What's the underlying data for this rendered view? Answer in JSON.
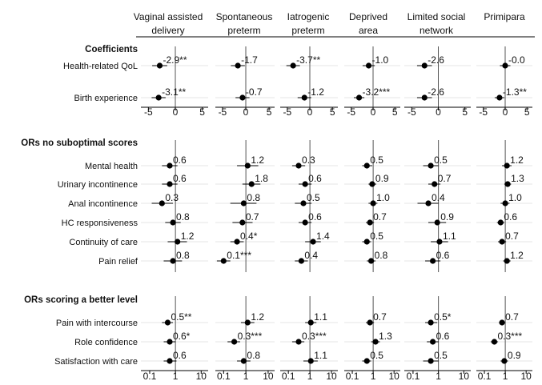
{
  "chart_data": {
    "type": "scatter",
    "description_style": "forest plot",
    "columns": [
      {
        "label_line1": "Vaginal assisted",
        "label_line2": "delivery"
      },
      {
        "label_line1": "Spontaneous",
        "label_line2": "preterm"
      },
      {
        "label_line1": "Iatrogenic",
        "label_line2": "preterm"
      },
      {
        "label_line1": "Deprived",
        "label_line2": "area"
      },
      {
        "label_line1": "Limited social",
        "label_line2": "network"
      },
      {
        "label_line1": "Primipara",
        "label_line2": ""
      }
    ],
    "sections": [
      {
        "title": "Coefficients",
        "scale": "linear",
        "xlim": [
          -5.5,
          5.5
        ],
        "ticks": [
          "-5",
          "0",
          "5"
        ],
        "tick_values": [
          -5,
          0,
          5
        ],
        "rows": [
          {
            "label": "Health-related QoL",
            "estimates": [
              -2.9,
              -1.7,
              -3.7,
              -1.0,
              -2.6,
              -0.0
            ],
            "ci": [
              [
                -4.3,
                -1.5
              ],
              [
                -3.2,
                -0.2
              ],
              [
                -5.2,
                -2.2
              ],
              [
                -2.4,
                0.4
              ],
              [
                -4.0,
                -1.2
              ],
              [
                -1.2,
                1.2
              ]
            ],
            "labels": [
              "-2.9**",
              "-1.7",
              "-3.7**",
              "-1.0",
              "-2.6",
              "-0.0"
            ]
          },
          {
            "label": "Birth experience",
            "estimates": [
              -3.1,
              -0.7,
              -1.2,
              -3.2,
              -2.6,
              -1.3
            ],
            "ci": [
              [
                -4.4,
                -1.8
              ],
              [
                -2.2,
                0.8
              ],
              [
                -2.7,
                0.3
              ],
              [
                -4.4,
                -2.0
              ],
              [
                -4.0,
                -1.2
              ],
              [
                -2.4,
                -0.2
              ]
            ],
            "labels": [
              "-3.1**",
              "-0.7",
              "-1.2",
              "-3.2***",
              "-2.6",
              "-1.3**"
            ]
          }
        ]
      },
      {
        "title": "ORs no suboptimal scores",
        "scale": "log",
        "xlim": [
          0.07,
          14
        ],
        "ticks": [
          "0.1",
          "1",
          "10"
        ],
        "tick_values": [
          0.1,
          1,
          10
        ],
        "rows": [
          {
            "label": "Mental health",
            "estimates": [
              0.6,
              1.2,
              0.3,
              0.5,
              0.5,
              1.2
            ],
            "ci": [
              [
                0.3,
                1.2
              ],
              [
                0.4,
                3.6
              ],
              [
                0.15,
                0.6
              ],
              [
                0.3,
                0.9
              ],
              [
                0.25,
                1.0
              ],
              [
                0.7,
                2.0
              ]
            ],
            "labels": [
              "0.6",
              "1.2",
              "0.3",
              "0.5",
              "0.5",
              "1.2"
            ]
          },
          {
            "label": "Urinary incontinence",
            "estimates": [
              0.6,
              1.8,
              0.6,
              0.9,
              0.7,
              1.3
            ],
            "ci": [
              [
                0.3,
                1.2
              ],
              [
                0.7,
                4.5
              ],
              [
                0.3,
                1.2
              ],
              [
                0.6,
                1.4
              ],
              [
                0.4,
                1.2
              ],
              [
                0.9,
                1.9
              ]
            ],
            "labels": [
              "0.6",
              "1.8",
              "0.6",
              "0.9",
              "0.7",
              "1.3"
            ]
          },
          {
            "label": "Anal incontinence",
            "estimates": [
              0.3,
              0.8,
              0.5,
              1.0,
              0.4,
              1.0
            ],
            "ci": [
              [
                0.12,
                0.8
              ],
              [
                0.2,
                3.0
              ],
              [
                0.2,
                1.2
              ],
              [
                0.6,
                1.6
              ],
              [
                0.15,
                1.0
              ],
              [
                0.6,
                1.6
              ]
            ],
            "labels": [
              "0.3",
              "0.8",
              "0.5",
              "1.0",
              "0.4",
              "1.0"
            ]
          },
          {
            "label": "HC responsiveness",
            "estimates": [
              0.8,
              0.7,
              0.6,
              0.7,
              0.9,
              0.6
            ],
            "ci": [
              [
                0.4,
                1.6
              ],
              [
                0.25,
                2.0
              ],
              [
                0.3,
                1.2
              ],
              [
                0.45,
                1.1
              ],
              [
                0.4,
                2.0
              ],
              [
                0.4,
                0.9
              ]
            ],
            "labels": [
              "0.8",
              "0.7",
              "0.6",
              "0.7",
              "0.9",
              "0.6"
            ]
          },
          {
            "label": "Continuity of care",
            "estimates": [
              1.2,
              0.4,
              1.4,
              0.5,
              1.1,
              0.7
            ],
            "ci": [
              [
                0.5,
                2.8
              ],
              [
                0.2,
                0.8
              ],
              [
                0.6,
                3.2
              ],
              [
                0.3,
                0.8
              ],
              [
                0.5,
                2.4
              ],
              [
                0.45,
                1.1
              ]
            ],
            "labels": [
              "1.2",
              "0.4*",
              "1.4",
              "0.5",
              "1.1",
              "0.7"
            ]
          },
          {
            "label": "Pain relief",
            "estimates": [
              0.8,
              0.1,
              0.4,
              0.8,
              0.6,
              1.2
            ],
            "ci": [
              [
                0.35,
                1.8
              ],
              [
                0.05,
                0.2
              ],
              [
                0.2,
                0.8
              ],
              [
                0.5,
                1.3
              ],
              [
                0.3,
                1.2
              ],
              [
                0.8,
                1.8
              ]
            ],
            "labels": [
              "0.8",
              "0.1***",
              "0.4",
              "0.8",
              "0.6",
              "1.2"
            ]
          }
        ]
      },
      {
        "title": "ORs scoring a better level",
        "scale": "log",
        "xlim": [
          0.07,
          14
        ],
        "ticks": [
          "0.1",
          "1",
          "10"
        ],
        "tick_values": [
          0.1,
          1,
          10
        ],
        "rows": [
          {
            "label": "Pain with intercourse",
            "estimates": [
              0.5,
              1.2,
              1.1,
              0.7,
              0.5,
              0.7
            ],
            "ci": [
              [
                0.3,
                0.8
              ],
              [
                0.6,
                2.4
              ],
              [
                0.6,
                2.0
              ],
              [
                0.45,
                1.1
              ],
              [
                0.3,
                0.9
              ],
              [
                0.5,
                1.0
              ]
            ],
            "labels": [
              "0.5**",
              "1.2",
              "1.1",
              "0.7",
              "0.5*",
              "0.7"
            ]
          },
          {
            "label": "Role confidence",
            "estimates": [
              0.6,
              0.3,
              0.3,
              1.3,
              0.6,
              0.3
            ],
            "ci": [
              [
                0.35,
                1.0
              ],
              [
                0.15,
                0.55
              ],
              [
                0.15,
                0.55
              ],
              [
                0.8,
                2.1
              ],
              [
                0.35,
                1.0
              ],
              [
                0.2,
                0.45
              ]
            ],
            "labels": [
              "0.6*",
              "0.3***",
              "0.3***",
              "1.3",
              "0.6",
              "0.3***"
            ]
          },
          {
            "label": "Satisfaction with care",
            "estimates": [
              0.6,
              0.8,
              1.1,
              0.5,
              0.5,
              0.9
            ],
            "ci": [
              [
                0.35,
                1.1
              ],
              [
                0.4,
                1.6
              ],
              [
                0.5,
                2.3
              ],
              [
                0.3,
                0.8
              ],
              [
                0.25,
                1.0
              ],
              [
                0.6,
                1.35
              ]
            ],
            "labels": [
              "0.6",
              "0.8",
              "1.1",
              "0.5",
              "0.5",
              "0.9"
            ]
          }
        ]
      }
    ]
  }
}
